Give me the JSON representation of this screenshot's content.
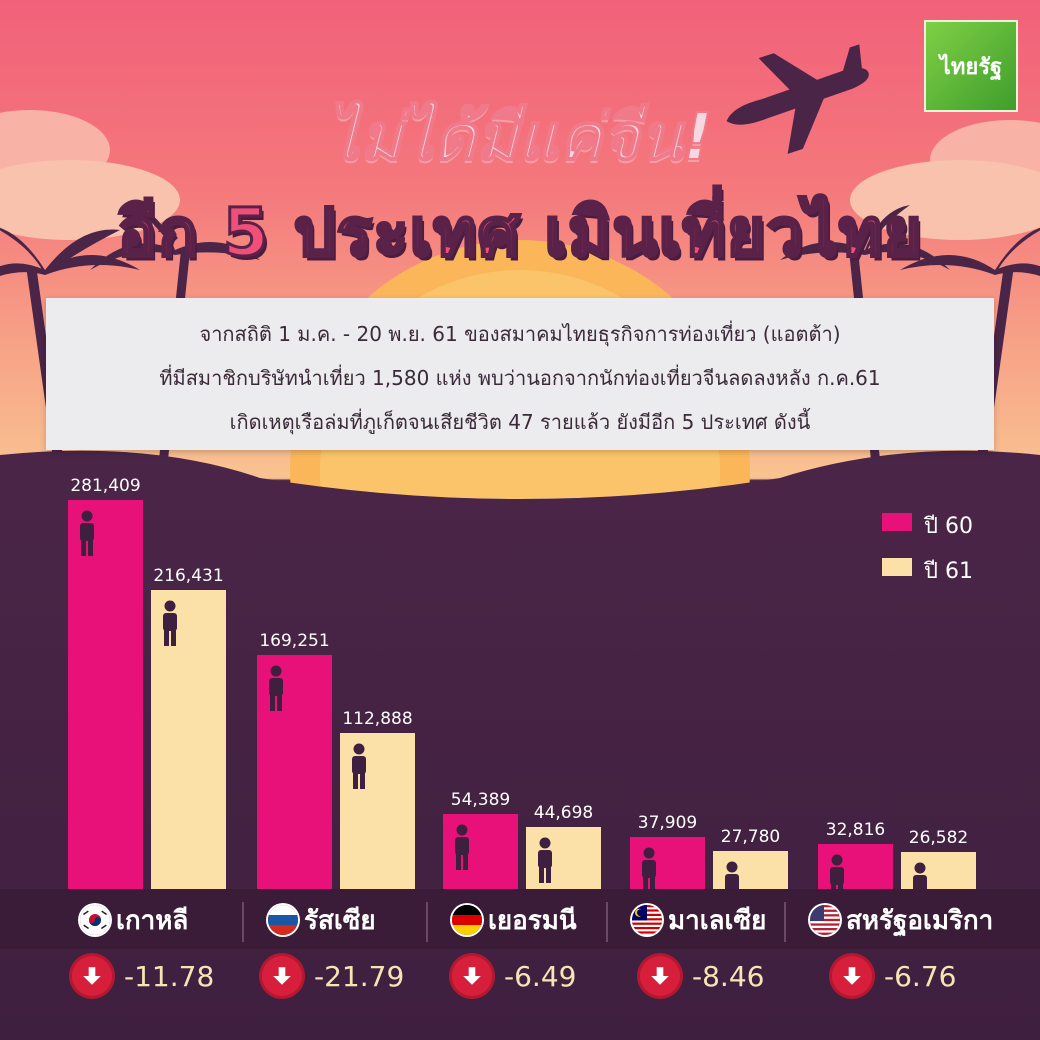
{
  "brand": "ไทยรัฐ",
  "title_line1": "ไม่ได้มีแค่จีน!",
  "title_line2": "อีก 5 ประเทศ เมินเที่ยวไทย",
  "info_lines": [
    "จากสถิติ 1 ม.ค. - 20 พ.ย. 61 ของสมาคมไทยธุรกิจการท่องเที่ยว (แอตต้า)",
    "ที่มีสมาชิกบริษัทนำเที่ยว 1,580 แห่ง พบว่านอกจากนักท่องเที่ยวจีนลดลงหลัง ก.ค.61",
    "เกิดเหตุเรือล่มที่ภูเก็ตจนเสียชีวิต 47 รายแล้ว ยังมีอีก 5 ประเทศ ดังนี้"
  ],
  "colors": {
    "year60": "#e8117a",
    "year61": "#fbe0a8",
    "background": "#3f1f3f"
  },
  "chart_data": {
    "type": "bar",
    "categories": [
      "เกาหลี",
      "รัสเซีย",
      "เยอรมนี",
      "มาเลเซีย",
      "สหรัฐอเมริกา"
    ],
    "series": [
      {
        "name": "ปี 60",
        "values": [
          281409,
          169251,
          54389,
          37909,
          32816
        ]
      },
      {
        "name": "ปี 61",
        "values": [
          216431,
          112888,
          44698,
          27780,
          26582
        ]
      }
    ],
    "value_labels": {
      "ปี 60": [
        "281,409",
        "169,251",
        "54,389",
        "37,909",
        "32,816"
      ],
      "ปี 61": [
        "216,431",
        "112,888",
        "44,698",
        "27,780",
        "26,582"
      ]
    },
    "changes": [
      "-11.78",
      "-21.79",
      "-6.49",
      "-8.46",
      "-6.76"
    ],
    "ylim": [
      0,
      300000
    ],
    "legend_position": "top-right",
    "grid": false,
    "xlabel": "",
    "ylabel": "",
    "title": ""
  },
  "flags": [
    "south-korea-flag-icon",
    "russia-flag-icon",
    "germany-flag-icon",
    "malaysia-flag-icon",
    "usa-flag-icon"
  ],
  "icons": {
    "airplane": "airplane-icon",
    "person": "person-icon",
    "down_arrow": "down-arrow-icon"
  }
}
